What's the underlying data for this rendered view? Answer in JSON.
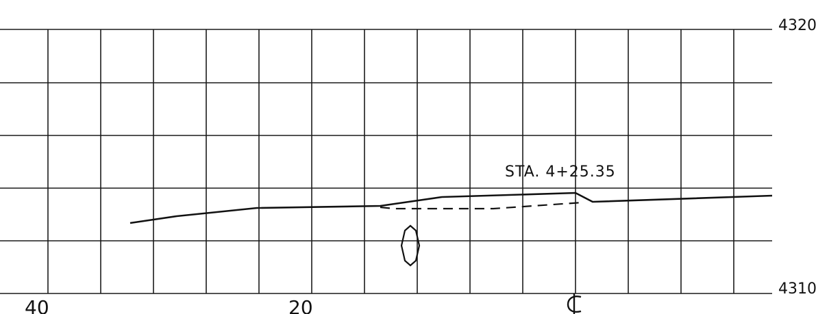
{
  "drawing": {
    "station_label": "STA. 4+25.35",
    "elevation_labels": {
      "top": "4320",
      "bottom": "4310"
    },
    "offset_labels": {
      "left": "40",
      "middle": "20",
      "centerline": "℄"
    }
  }
}
